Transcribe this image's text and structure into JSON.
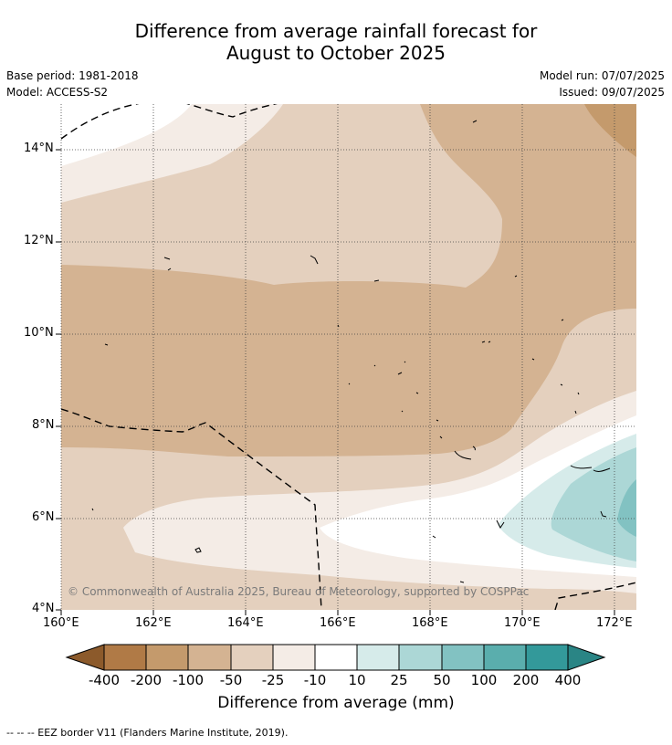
{
  "title": {
    "line1": "Difference from average rainfall forecast for",
    "line2": "August to October 2025"
  },
  "meta": {
    "base_period": "Base period: 1981-2018",
    "model": "Model: ACCESS-S2",
    "model_run": "Model run: 07/07/2025",
    "issued": "Issued: 09/07/2025"
  },
  "credit": "© Commonwealth of Australia 2025, Bureau of Meteorology, supported by COSPPac",
  "axes": {
    "x_ticks": [
      "160°E",
      "162°E",
      "164°E",
      "166°E",
      "168°E",
      "170°E",
      "172°E"
    ],
    "y_ticks": [
      "14°N",
      "12°N",
      "10°N",
      "8°N",
      "6°N",
      "4°N"
    ]
  },
  "colorbar": {
    "title": "Difference from average (mm)",
    "labels": [
      "-400",
      "-200",
      "-100",
      "-50",
      "-25",
      "-10",
      "10",
      "25",
      "50",
      "100",
      "200",
      "400"
    ],
    "colors": [
      "#8c5a2b",
      "#b07a46",
      "#c49a6c",
      "#d4b392",
      "#e4d0be",
      "#f4ece6",
      "#ffffff",
      "#d6ebea",
      "#acd7d6",
      "#82c2c2",
      "#5aaead",
      "#33999a",
      "#2a8585"
    ]
  },
  "footer": "--  --  -- EEZ border V11 (Flanders Marine Institute, 2019)."
}
